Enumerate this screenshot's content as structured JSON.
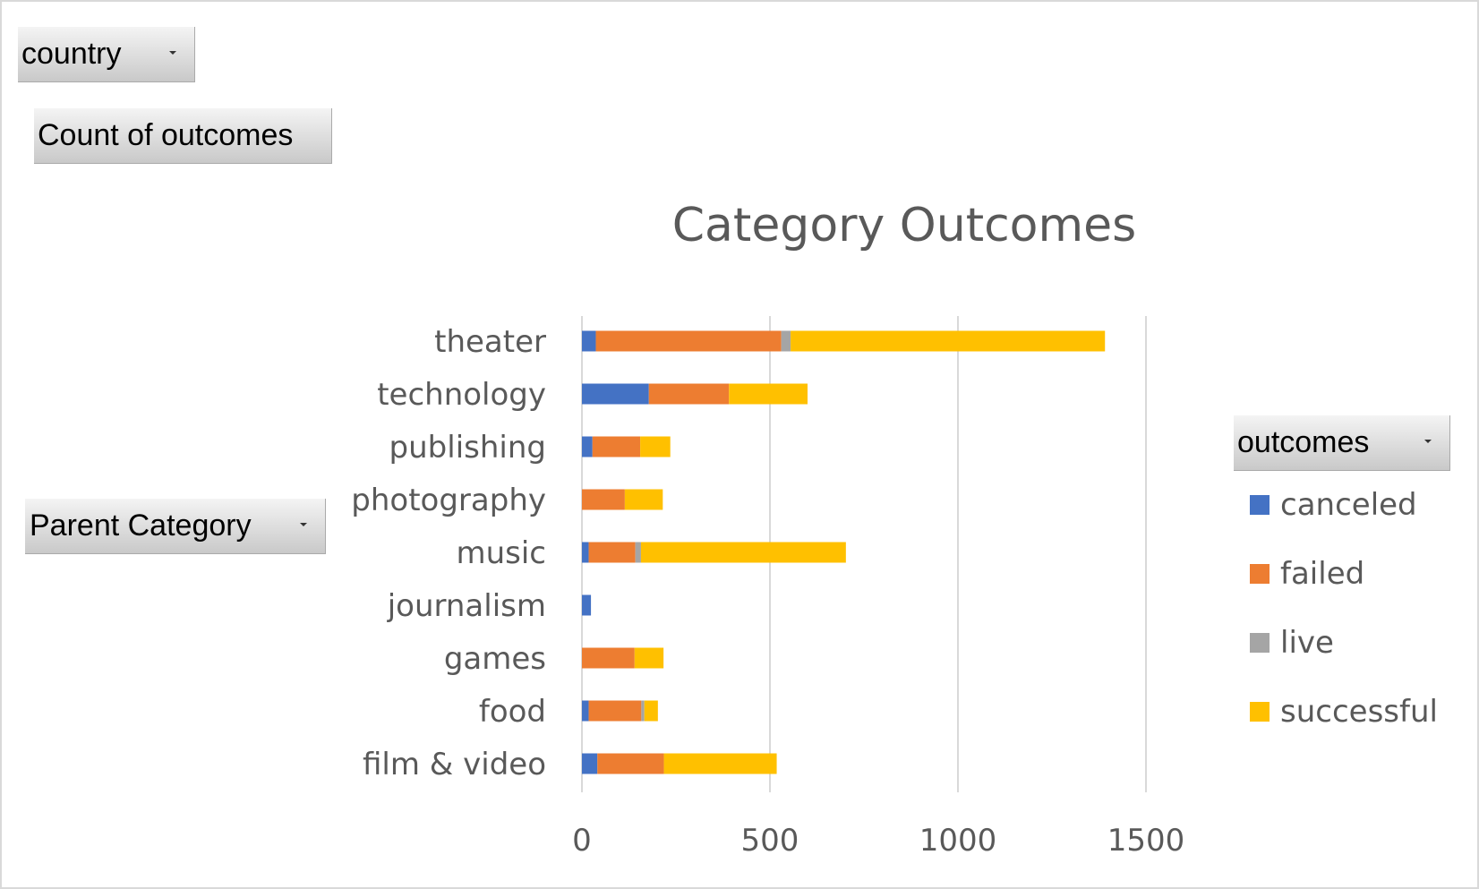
{
  "filters": {
    "country_label": "country",
    "values_label": "Count of outcomes",
    "row_label": "Parent Category",
    "legend_label": "outcomes"
  },
  "colors": {
    "canceled": "#4472c4",
    "failed": "#ed7d31",
    "live": "#a5a5a5",
    "successful": "#ffc000",
    "gridline": "#d9d9d9",
    "text": "#595959"
  },
  "chart_data": {
    "type": "bar",
    "orientation": "horizontal",
    "stacked": true,
    "title": "Category Outcomes",
    "categories": [
      "theater",
      "technology",
      "publishing",
      "photography",
      "music",
      "journalism",
      "games",
      "food",
      "film & video"
    ],
    "series": [
      {
        "name": "canceled",
        "values": [
          37,
          178,
          28,
          0,
          18,
          24,
          0,
          18,
          41
        ]
      },
      {
        "name": "failed",
        "values": [
          493,
          213,
          127,
          114,
          124,
          0,
          140,
          140,
          177
        ]
      },
      {
        "name": "live",
        "values": [
          25,
          0,
          0,
          0,
          15,
          0,
          0,
          8,
          0
        ]
      },
      {
        "name": "successful",
        "values": [
          836,
          209,
          80,
          101,
          545,
          0,
          77,
          36,
          300
        ]
      }
    ],
    "xlim": [
      0,
      1500
    ],
    "xticks": [
      "0",
      "500",
      "1000",
      "1500"
    ],
    "grid": true,
    "legend_position": "right"
  }
}
